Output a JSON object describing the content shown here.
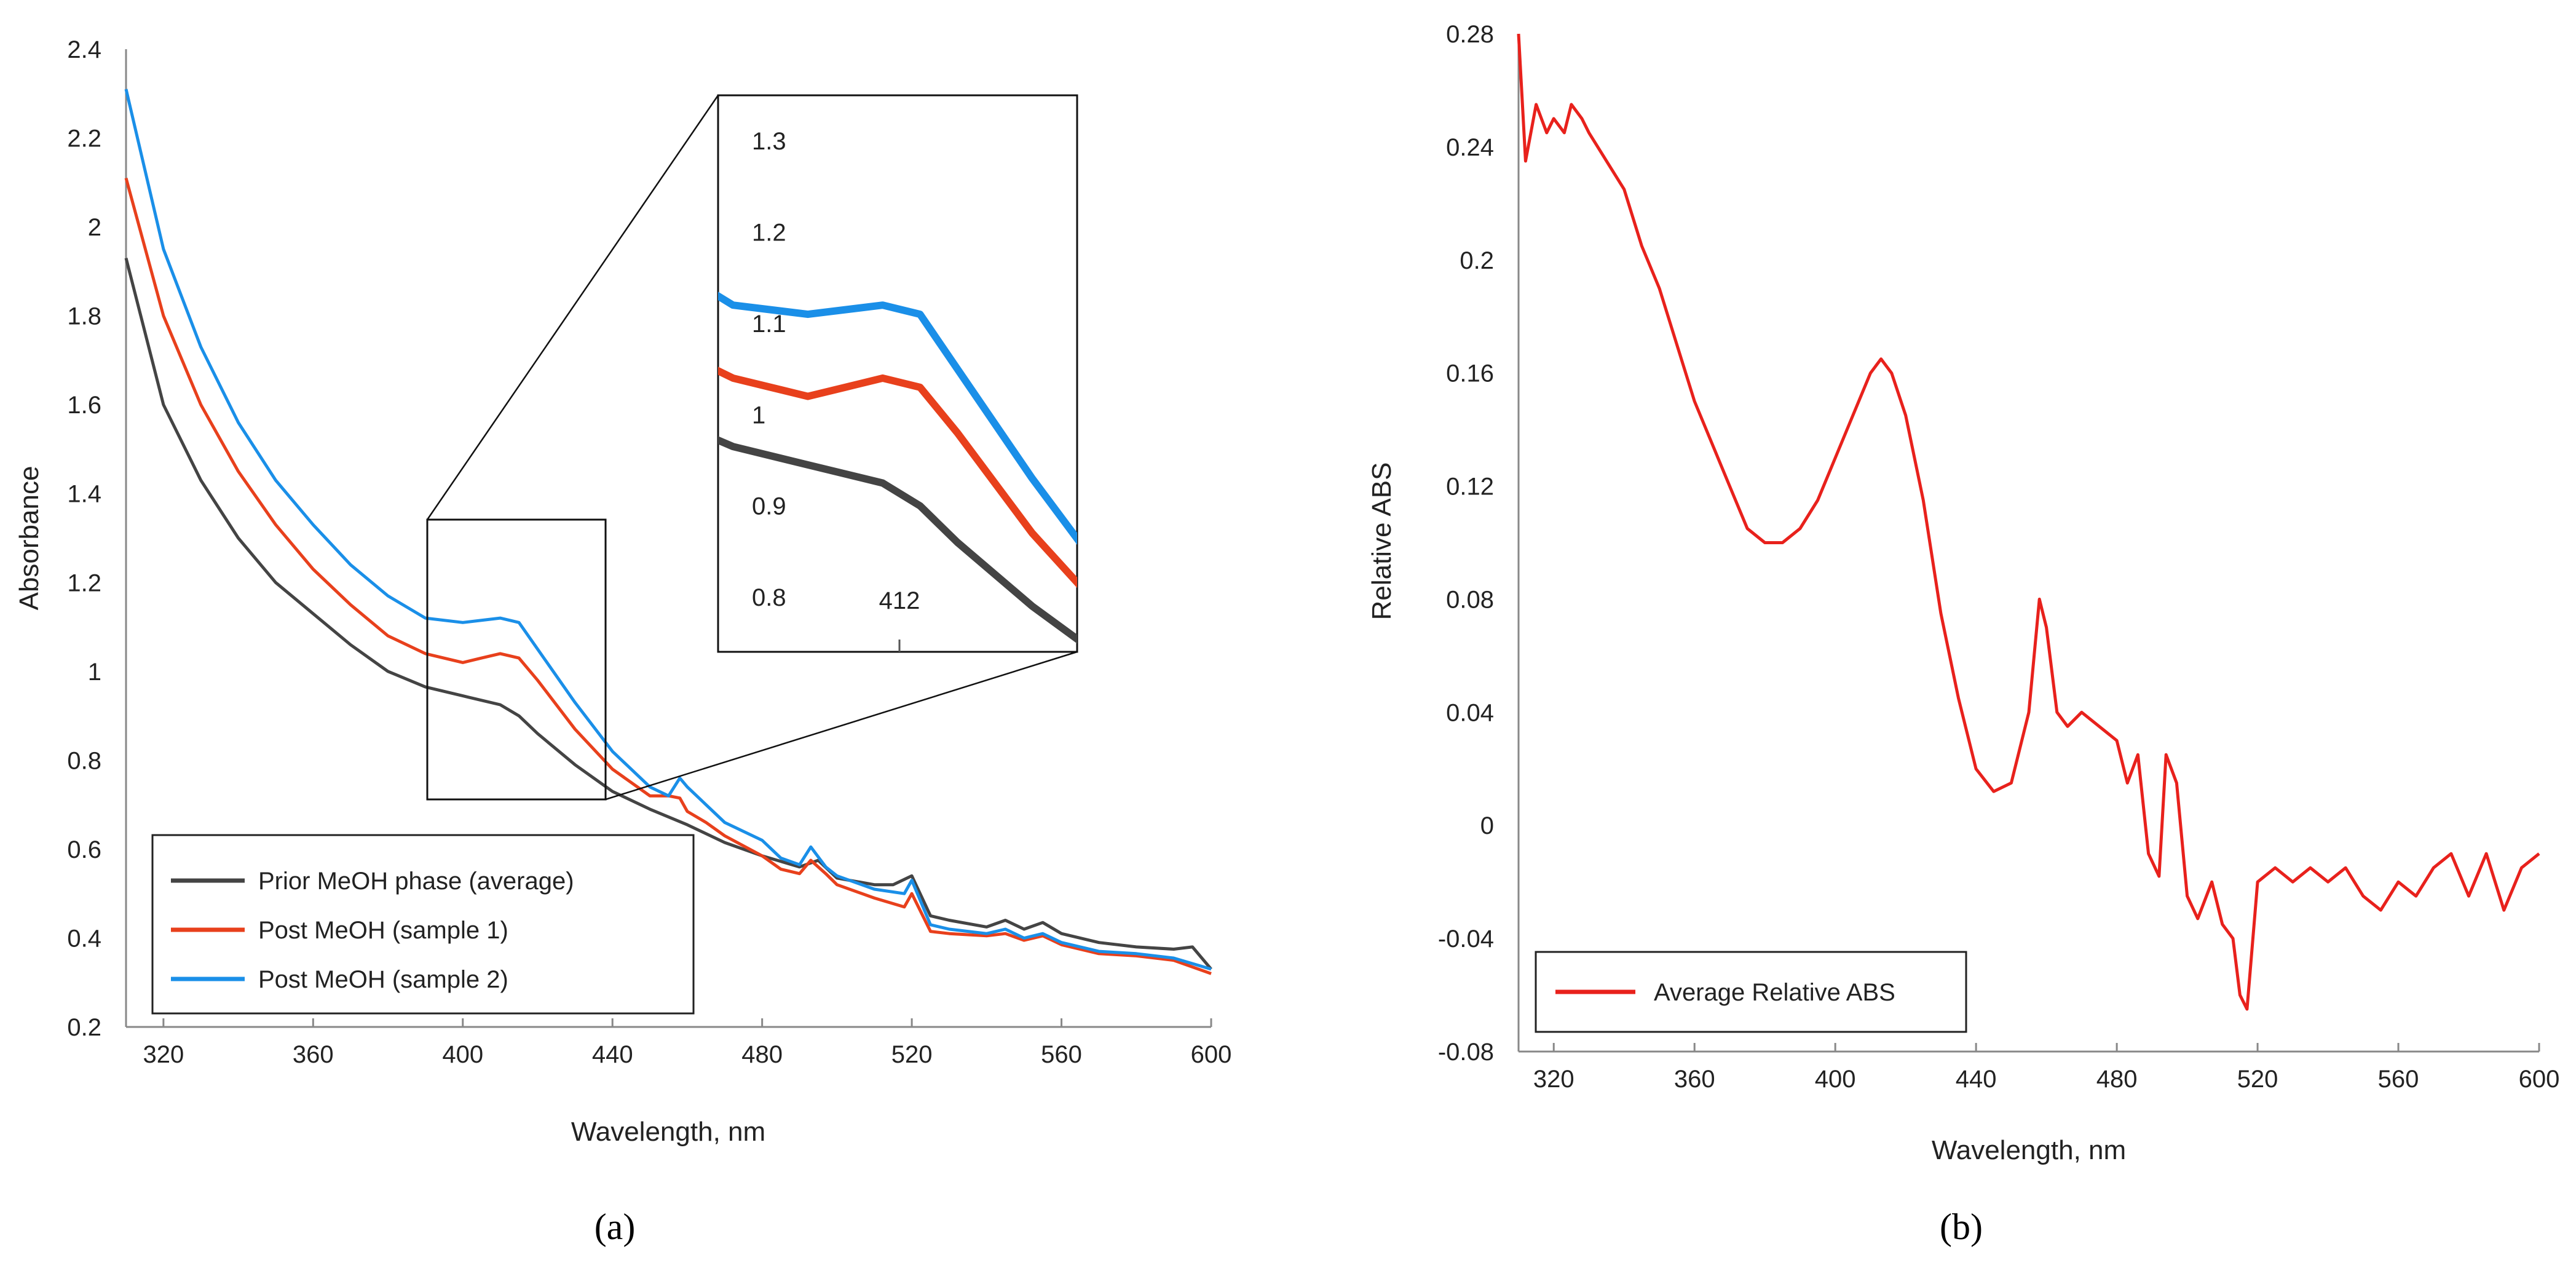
{
  "chart_data": [
    {
      "panel": "(a)",
      "type": "line",
      "xlabel": "Wavelength, nm",
      "ylabel": "Absorbance",
      "xlim": [
        310,
        600
      ],
      "ylim": [
        0.2,
        2.4
      ],
      "x_ticks": [
        "320",
        "360",
        "400",
        "440",
        "480",
        "520",
        "560",
        "600"
      ],
      "y_ticks": [
        "0.2",
        "0.4",
        "0.6",
        "0.8",
        "1",
        "1.2",
        "1.4",
        "1.6",
        "1.8",
        "2",
        "2.2",
        "2.4"
      ],
      "legend_position": "bottom-left",
      "series": [
        {
          "name": "Prior MeOH phase (average)",
          "color": "#444444",
          "points": [
            [
              310,
              1.93
            ],
            [
              320,
              1.6
            ],
            [
              330,
              1.43
            ],
            [
              340,
              1.3
            ],
            [
              350,
              1.2
            ],
            [
              360,
              1.13
            ],
            [
              370,
              1.06
            ],
            [
              380,
              1.0
            ],
            [
              390,
              0.965
            ],
            [
              400,
              0.945
            ],
            [
              410,
              0.925
            ],
            [
              415,
              0.9
            ],
            [
              420,
              0.86
            ],
            [
              430,
              0.79
            ],
            [
              440,
              0.73
            ],
            [
              450,
              0.69
            ],
            [
              460,
              0.655
            ],
            [
              470,
              0.615
            ],
            [
              480,
              0.585
            ],
            [
              490,
              0.56
            ],
            [
              495,
              0.575
            ],
            [
              500,
              0.535
            ],
            [
              510,
              0.52
            ],
            [
              515,
              0.52
            ],
            [
              520,
              0.54
            ],
            [
              525,
              0.45
            ],
            [
              530,
              0.44
            ],
            [
              540,
              0.425
            ],
            [
              545,
              0.44
            ],
            [
              550,
              0.42
            ],
            [
              555,
              0.435
            ],
            [
              560,
              0.41
            ],
            [
              570,
              0.39
            ],
            [
              580,
              0.38
            ],
            [
              590,
              0.375
            ],
            [
              595,
              0.38
            ],
            [
              600,
              0.33
            ]
          ]
        },
        {
          "name": "Post MeOH (sample 1)",
          "color": "#e8401c",
          "points": [
            [
              310,
              2.11
            ],
            [
              320,
              1.8
            ],
            [
              330,
              1.6
            ],
            [
              340,
              1.45
            ],
            [
              350,
              1.33
            ],
            [
              360,
              1.23
            ],
            [
              370,
              1.15
            ],
            [
              380,
              1.08
            ],
            [
              390,
              1.04
            ],
            [
              400,
              1.02
            ],
            [
              405,
              1.03
            ],
            [
              410,
              1.04
            ],
            [
              415,
              1.03
            ],
            [
              420,
              0.98
            ],
            [
              430,
              0.87
            ],
            [
              440,
              0.78
            ],
            [
              450,
              0.72
            ],
            [
              455,
              0.72
            ],
            [
              458,
              0.715
            ],
            [
              460,
              0.685
            ],
            [
              465,
              0.66
            ],
            [
              470,
              0.63
            ],
            [
              480,
              0.585
            ],
            [
              485,
              0.555
            ],
            [
              490,
              0.545
            ],
            [
              493,
              0.575
            ],
            [
              497,
              0.545
            ],
            [
              500,
              0.52
            ],
            [
              510,
              0.49
            ],
            [
              518,
              0.47
            ],
            [
              520,
              0.5
            ],
            [
              525,
              0.415
            ],
            [
              530,
              0.41
            ],
            [
              540,
              0.405
            ],
            [
              545,
              0.41
            ],
            [
              550,
              0.395
            ],
            [
              555,
              0.405
            ],
            [
              560,
              0.385
            ],
            [
              570,
              0.365
            ],
            [
              580,
              0.36
            ],
            [
              590,
              0.35
            ],
            [
              600,
              0.32
            ]
          ]
        },
        {
          "name": "Post MeOH (sample 2)",
          "color": "#1a8fe8",
          "points": [
            [
              310,
              2.31
            ],
            [
              320,
              1.95
            ],
            [
              330,
              1.73
            ],
            [
              340,
              1.56
            ],
            [
              350,
              1.43
            ],
            [
              360,
              1.33
            ],
            [
              370,
              1.24
            ],
            [
              380,
              1.17
            ],
            [
              390,
              1.12
            ],
            [
              400,
              1.11
            ],
            [
              410,
              1.12
            ],
            [
              415,
              1.11
            ],
            [
              420,
              1.05
            ],
            [
              430,
              0.93
            ],
            [
              440,
              0.82
            ],
            [
              450,
              0.74
            ],
            [
              455,
              0.72
            ],
            [
              458,
              0.76
            ],
            [
              460,
              0.74
            ],
            [
              470,
              0.66
            ],
            [
              480,
              0.62
            ],
            [
              485,
              0.58
            ],
            [
              490,
              0.565
            ],
            [
              493,
              0.605
            ],
            [
              497,
              0.56
            ],
            [
              500,
              0.54
            ],
            [
              510,
              0.51
            ],
            [
              518,
              0.5
            ],
            [
              520,
              0.53
            ],
            [
              525,
              0.43
            ],
            [
              530,
              0.42
            ],
            [
              540,
              0.41
            ],
            [
              545,
              0.42
            ],
            [
              550,
              0.4
            ],
            [
              555,
              0.41
            ],
            [
              560,
              0.39
            ],
            [
              570,
              0.37
            ],
            [
              580,
              0.365
            ],
            [
              590,
              0.355
            ],
            [
              600,
              0.33
            ]
          ]
        }
      ],
      "inset": {
        "x_tick": "412",
        "y_ticks": [
          "0.8",
          "0.9",
          "1",
          "1.1",
          "1.2",
          "1.3"
        ],
        "xlim": [
          388,
          436
        ],
        "ylim": [
          0.74,
          1.35
        ]
      }
    },
    {
      "panel": "(b)",
      "type": "line",
      "xlabel": "Wavelength, nm",
      "ylabel": "Relative ABS",
      "xlim": [
        310,
        600
      ],
      "ylim": [
        -0.08,
        0.28
      ],
      "x_ticks": [
        "320",
        "360",
        "400",
        "440",
        "480",
        "520",
        "560",
        "600"
      ],
      "y_ticks": [
        "-0.08",
        "-0.04",
        "0",
        "0.04",
        "0.08",
        "0.12",
        "0.16",
        "0.2",
        "0.24",
        "0.28"
      ],
      "legend_position": "bottom-left",
      "series": [
        {
          "name": "Average Relative ABS",
          "color": "#e8211c",
          "points": [
            [
              310,
              0.28
            ],
            [
              312,
              0.235
            ],
            [
              315,
              0.255
            ],
            [
              318,
              0.245
            ],
            [
              320,
              0.25
            ],
            [
              323,
              0.245
            ],
            [
              325,
              0.255
            ],
            [
              328,
              0.25
            ],
            [
              330,
              0.245
            ],
            [
              335,
              0.235
            ],
            [
              340,
              0.225
            ],
            [
              345,
              0.205
            ],
            [
              350,
              0.19
            ],
            [
              355,
              0.17
            ],
            [
              360,
              0.15
            ],
            [
              365,
              0.135
            ],
            [
              370,
              0.12
            ],
            [
              375,
              0.105
            ],
            [
              380,
              0.1
            ],
            [
              385,
              0.1
            ],
            [
              390,
              0.105
            ],
            [
              395,
              0.115
            ],
            [
              400,
              0.13
            ],
            [
              405,
              0.145
            ],
            [
              410,
              0.16
            ],
            [
              413,
              0.165
            ],
            [
              416,
              0.16
            ],
            [
              420,
              0.145
            ],
            [
              425,
              0.115
            ],
            [
              430,
              0.075
            ],
            [
              435,
              0.045
            ],
            [
              440,
              0.02
            ],
            [
              445,
              0.012
            ],
            [
              450,
              0.015
            ],
            [
              455,
              0.04
            ],
            [
              458,
              0.08
            ],
            [
              460,
              0.07
            ],
            [
              463,
              0.04
            ],
            [
              466,
              0.035
            ],
            [
              470,
              0.04
            ],
            [
              475,
              0.035
            ],
            [
              480,
              0.03
            ],
            [
              483,
              0.015
            ],
            [
              486,
              0.025
            ],
            [
              489,
              -0.01
            ],
            [
              492,
              -0.018
            ],
            [
              494,
              0.025
            ],
            [
              497,
              0.015
            ],
            [
              500,
              -0.025
            ],
            [
              503,
              -0.033
            ],
            [
              507,
              -0.02
            ],
            [
              510,
              -0.035
            ],
            [
              513,
              -0.04
            ],
            [
              515,
              -0.06
            ],
            [
              517,
              -0.065
            ],
            [
              520,
              -0.02
            ],
            [
              525,
              -0.015
            ],
            [
              530,
              -0.02
            ],
            [
              535,
              -0.015
            ],
            [
              540,
              -0.02
            ],
            [
              545,
              -0.015
            ],
            [
              550,
              -0.025
            ],
            [
              555,
              -0.03
            ],
            [
              560,
              -0.02
            ],
            [
              565,
              -0.025
            ],
            [
              570,
              -0.015
            ],
            [
              575,
              -0.01
            ],
            [
              580,
              -0.025
            ],
            [
              585,
              -0.01
            ],
            [
              590,
              -0.03
            ],
            [
              595,
              -0.015
            ],
            [
              600,
              -0.01
            ]
          ]
        }
      ]
    }
  ]
}
